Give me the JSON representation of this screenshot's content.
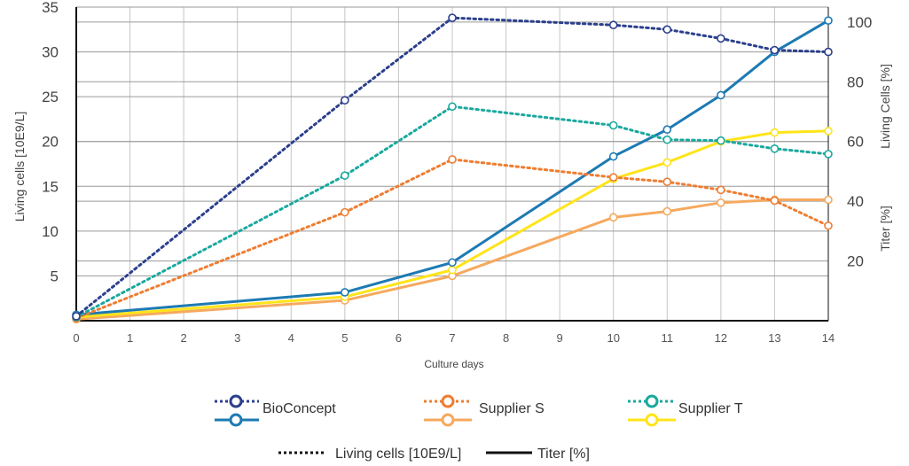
{
  "chart_data": {
    "type": "line",
    "xlabel": "Culture days",
    "ylabel_left": "Living cells [10E9/L]",
    "ylabel_right_living": "Living Cells [%]",
    "ylabel_right_titer": "Titer [%]",
    "x_ticks": [
      "0",
      "1",
      "2",
      "3",
      "4",
      "5",
      "6",
      "7",
      "8",
      "9",
      "10",
      "11",
      "12",
      "13",
      "14"
    ],
    "y_left_ticks": [
      "5",
      "10",
      "15",
      "20",
      "25",
      "30",
      "35"
    ],
    "y_right_ticks": [
      "20",
      "40",
      "60",
      "80",
      "100"
    ],
    "xlim": [
      0,
      14
    ],
    "ylim_left": [
      0,
      35
    ],
    "ylim_right": [
      0,
      105
    ],
    "grid": true,
    "series": [
      {
        "name": "BioConcept",
        "measure": "Living cells [10E9/L]",
        "style": "dotted",
        "color": "#2b3f8c",
        "x": [
          0,
          5,
          7,
          10,
          11,
          12,
          13,
          14
        ],
        "y": [
          0.5,
          24.6,
          33.8,
          33.0,
          32.5,
          31.5,
          30.2,
          30.0
        ]
      },
      {
        "name": "BioConcept",
        "measure": "Titer [%]",
        "style": "solid",
        "color": "#1d7ab3",
        "x": [
          0,
          5,
          7,
          10,
          11,
          12,
          13,
          14
        ],
        "y": [
          2.0,
          9.5,
          19.5,
          55.0,
          64.0,
          75.5,
          90.0,
          100.5
        ]
      },
      {
        "name": "Supplier S",
        "measure": "Living cells [10E9/L]",
        "style": "dotted",
        "color": "#ee7d32",
        "x": [
          0,
          5,
          7,
          10,
          11,
          12,
          13,
          14
        ],
        "y": [
          0.3,
          12.1,
          18.0,
          16.0,
          15.5,
          14.6,
          13.4,
          10.6
        ]
      },
      {
        "name": "Supplier S",
        "measure": "Titer [%]",
        "style": "solid",
        "color": "#f5a95e",
        "x": [
          0,
          5,
          7,
          10,
          11,
          12,
          13,
          14
        ],
        "y": [
          0.5,
          6.8,
          15.0,
          34.6,
          36.6,
          39.5,
          40.5,
          40.5
        ]
      },
      {
        "name": "Supplier T",
        "measure": "Living cells [10E9/L]",
        "style": "dotted",
        "color": "#1aa89e",
        "x": [
          0,
          5,
          7,
          10,
          11,
          12,
          13,
          14
        ],
        "y": [
          0.4,
          16.2,
          23.9,
          21.8,
          20.2,
          20.1,
          19.2,
          18.6
        ]
      },
      {
        "name": "Supplier T",
        "measure": "Titer [%]",
        "style": "solid",
        "color": "#ffe419",
        "x": [
          0,
          5,
          7,
          10,
          11,
          12,
          13,
          14
        ],
        "y": [
          1.2,
          8.0,
          17.0,
          47.5,
          53.0,
          60.0,
          63.0,
          63.5
        ]
      }
    ],
    "legend": {
      "placement": "bottom",
      "entries": [
        "BioConcept",
        "Supplier S",
        "Supplier T"
      ],
      "style_key": {
        "dotted": "Living cells [10E9/L]",
        "solid": "Titer [%]"
      }
    }
  }
}
